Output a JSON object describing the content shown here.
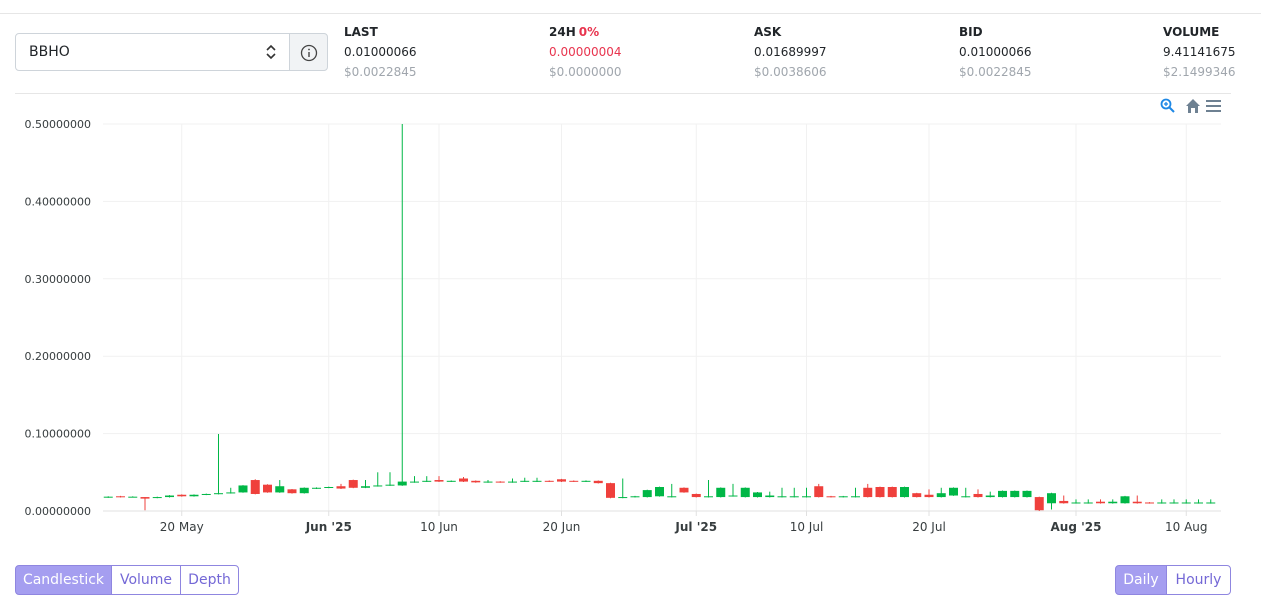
{
  "market": {
    "pair": "BBHO",
    "stats": [
      {
        "label": "LAST",
        "value": "0.01000066",
        "usd": "$0.0022845"
      },
      {
        "label": "24H",
        "change": "0%",
        "value": "0.00000004",
        "usd": "$0.0000000"
      },
      {
        "label": "ASK",
        "value": "0.01689997",
        "usd": "$0.0038606"
      },
      {
        "label": "BID",
        "value": "0.01000066",
        "usd": "$0.0022845"
      },
      {
        "label": "VOLUME",
        "value": "9.41141675",
        "usd": "$2.1499346"
      }
    ]
  },
  "chart_tabs": [
    "Candlestick",
    "Volume",
    "Depth"
  ],
  "intervals": [
    "Daily",
    "Hourly"
  ],
  "chart_data": {
    "type": "candlestick",
    "up_color": "#00b746",
    "down_color": "#ef403c",
    "grid": true,
    "ylim": [
      0,
      0.5
    ],
    "yticks": [
      {
        "value": 0,
        "label": "0.00000000"
      },
      {
        "value": 0.1,
        "label": "0.10000000"
      },
      {
        "value": 0.2,
        "label": "0.20000000"
      },
      {
        "value": 0.3,
        "label": "0.30000000"
      },
      {
        "value": 0.4,
        "label": "0.40000000"
      },
      {
        "value": 0.5,
        "label": "0.50000000"
      }
    ],
    "xlim": [
      "2025-05-13",
      "2025-08-13"
    ],
    "xticks": [
      {
        "value": "2025-05-20",
        "label": "20 May"
      },
      {
        "value": "2025-06-01",
        "label": "Jun '25"
      },
      {
        "value": "2025-06-10",
        "label": "10 Jun"
      },
      {
        "value": "2025-06-20",
        "label": "20 Jun"
      },
      {
        "value": "2025-07-01",
        "label": "Jul '25"
      },
      {
        "value": "2025-07-10",
        "label": "10 Jul"
      },
      {
        "value": "2025-07-20",
        "label": "20 Jul"
      },
      {
        "value": "2025-08-01",
        "label": "Aug '25"
      },
      {
        "value": "2025-08-10",
        "label": "10 Aug"
      }
    ],
    "x": [
      "2025-05-14",
      "2025-05-15",
      "2025-05-16",
      "2025-05-17",
      "2025-05-18",
      "2025-05-19",
      "2025-05-20",
      "2025-05-21",
      "2025-05-22",
      "2025-05-23",
      "2025-05-24",
      "2025-05-25",
      "2025-05-26",
      "2025-05-27",
      "2025-05-28",
      "2025-05-29",
      "2025-05-30",
      "2025-05-31",
      "2025-06-01",
      "2025-06-02",
      "2025-06-03",
      "2025-06-04",
      "2025-06-05",
      "2025-06-06",
      "2025-06-07",
      "2025-06-08",
      "2025-06-09",
      "2025-06-10",
      "2025-06-11",
      "2025-06-12",
      "2025-06-13",
      "2025-06-14",
      "2025-06-15",
      "2025-06-16",
      "2025-06-17",
      "2025-06-18",
      "2025-06-19",
      "2025-06-20",
      "2025-06-21",
      "2025-06-22",
      "2025-06-23",
      "2025-06-24",
      "2025-06-25",
      "2025-06-26",
      "2025-06-27",
      "2025-06-28",
      "2025-06-29",
      "2025-06-30",
      "2025-07-01",
      "2025-07-02",
      "2025-07-03",
      "2025-07-04",
      "2025-07-05",
      "2025-07-06",
      "2025-07-07",
      "2025-07-08",
      "2025-07-09",
      "2025-07-10",
      "2025-07-11",
      "2025-07-12",
      "2025-07-13",
      "2025-07-14",
      "2025-07-15",
      "2025-07-16",
      "2025-07-17",
      "2025-07-18",
      "2025-07-19",
      "2025-07-20",
      "2025-07-21",
      "2025-07-22",
      "2025-07-23",
      "2025-07-24",
      "2025-07-25",
      "2025-07-26",
      "2025-07-27",
      "2025-07-28",
      "2025-07-29",
      "2025-07-30",
      "2025-07-31",
      "2025-08-01",
      "2025-08-02",
      "2025-08-03",
      "2025-08-04",
      "2025-08-05",
      "2025-08-06",
      "2025-08-07",
      "2025-08-08",
      "2025-08-09",
      "2025-08-10",
      "2025-08-11",
      "2025-08-12"
    ],
    "open": [
      0.0175,
      0.019,
      0.018,
      0.018,
      0.017,
      0.018,
      0.021,
      0.019,
      0.021,
      0.022,
      0.023,
      0.024,
      0.04,
      0.034,
      0.024,
      0.028,
      0.023,
      0.029,
      0.03,
      0.032,
      0.04,
      0.03,
      0.032,
      0.033,
      0.033,
      0.037,
      0.038,
      0.04,
      0.038,
      0.042,
      0.039,
      0.037,
      0.038,
      0.037,
      0.038,
      0.038,
      0.039,
      0.041,
      0.039,
      0.038,
      0.039,
      0.036,
      0.017,
      0.018,
      0.018,
      0.019,
      0.018,
      0.03,
      0.022,
      0.018,
      0.018,
      0.019,
      0.018,
      0.018,
      0.018,
      0.018,
      0.018,
      0.018,
      0.032,
      0.019,
      0.018,
      0.018,
      0.03,
      0.031,
      0.031,
      0.018,
      0.023,
      0.021,
      0.018,
      0.02,
      0.018,
      0.022,
      0.018,
      0.018,
      0.018,
      0.018,
      0.018,
      0.01,
      0.013,
      0.01,
      0.01,
      0.012,
      0.01,
      0.01,
      0.012,
      0.011,
      0.01,
      0.01,
      0.01,
      0.01,
      0.01
    ],
    "high": [
      0.019,
      0.0195,
      0.019,
      0.018,
      0.0185,
      0.0205,
      0.0215,
      0.0215,
      0.0225,
      0.0995,
      0.03,
      0.0335,
      0.041,
      0.0345,
      0.04,
      0.0285,
      0.0305,
      0.0305,
      0.0315,
      0.035,
      0.0405,
      0.04,
      0.05,
      0.05,
      0.5,
      0.045,
      0.045,
      0.045,
      0.0395,
      0.044,
      0.0395,
      0.04,
      0.0385,
      0.042,
      0.043,
      0.043,
      0.0395,
      0.0415,
      0.0395,
      0.0395,
      0.0395,
      0.0365,
      0.042,
      0.0195,
      0.0275,
      0.0315,
      0.035,
      0.0305,
      0.0225,
      0.04,
      0.0305,
      0.035,
      0.0305,
      0.0245,
      0.025,
      0.03,
      0.03,
      0.03,
      0.035,
      0.0195,
      0.0195,
      0.03,
      0.035,
      0.0315,
      0.0315,
      0.0315,
      0.0235,
      0.028,
      0.03,
      0.0305,
      0.03,
      0.028,
      0.025,
      0.0265,
      0.0265,
      0.0265,
      0.0185,
      0.0235,
      0.02,
      0.015,
      0.015,
      0.015,
      0.015,
      0.0195,
      0.02,
      0.0115,
      0.015,
      0.015,
      0.015,
      0.015,
      0.015
    ],
    "low": [
      0.017,
      0.0175,
      0.0175,
      0.001,
      0.0165,
      0.0175,
      0.0185,
      0.0185,
      0.0205,
      0.0215,
      0.0225,
      0.0235,
      0.0215,
      0.0235,
      0.0235,
      0.0225,
      0.0225,
      0.0285,
      0.0295,
      0.0285,
      0.0295,
      0.0295,
      0.0315,
      0.0325,
      0.0325,
      0.0365,
      0.0375,
      0.0375,
      0.0375,
      0.0375,
      0.0365,
      0.0365,
      0.0365,
      0.0365,
      0.0375,
      0.0375,
      0.0375,
      0.0375,
      0.0375,
      0.0375,
      0.0355,
      0.0165,
      0.0165,
      0.0175,
      0.0175,
      0.0185,
      0.0175,
      0.0235,
      0.0175,
      0.0175,
      0.0175,
      0.0185,
      0.0175,
      0.0175,
      0.0175,
      0.0175,
      0.0175,
      0.0175,
      0.0175,
      0.0175,
      0.0175,
      0.0175,
      0.0175,
      0.0175,
      0.0175,
      0.0175,
      0.0175,
      0.0175,
      0.0175,
      0.0195,
      0.0175,
      0.0175,
      0.0175,
      0.0175,
      0.0175,
      0.0175,
      0,
      0.002,
      0.0095,
      0.0095,
      0.0095,
      0.0095,
      0.0095,
      0.0095,
      0.0095,
      0.0095,
      0.0095,
      0.0095,
      0.0095,
      0.0095,
      0.0095
    ],
    "close": [
      0.0185,
      0.018,
      0.0185,
      0.016,
      0.018,
      0.02,
      0.019,
      0.021,
      0.022,
      0.023,
      0.024,
      0.033,
      0.022,
      0.024,
      0.032,
      0.023,
      0.03,
      0.03,
      0.031,
      0.029,
      0.03,
      0.032,
      0.033,
      0.034,
      0.038,
      0.038,
      0.039,
      0.038,
      0.039,
      0.038,
      0.037,
      0.038,
      0.037,
      0.038,
      0.039,
      0.039,
      0.038,
      0.038,
      0.038,
      0.039,
      0.036,
      0.017,
      0.018,
      0.019,
      0.027,
      0.031,
      0.019,
      0.024,
      0.018,
      0.019,
      0.03,
      0.02,
      0.03,
      0.024,
      0.02,
      0.019,
      0.019,
      0.019,
      0.018,
      0.018,
      0.019,
      0.019,
      0.018,
      0.018,
      0.018,
      0.031,
      0.018,
      0.018,
      0.023,
      0.03,
      0.019,
      0.018,
      0.02,
      0.026,
      0.026,
      0.026,
      0.001,
      0.023,
      0.01,
      0.011,
      0.011,
      0.01,
      0.012,
      0.019,
      0.01,
      0.01,
      0.011,
      0.011,
      0.011,
      0.011,
      0.011
    ]
  }
}
